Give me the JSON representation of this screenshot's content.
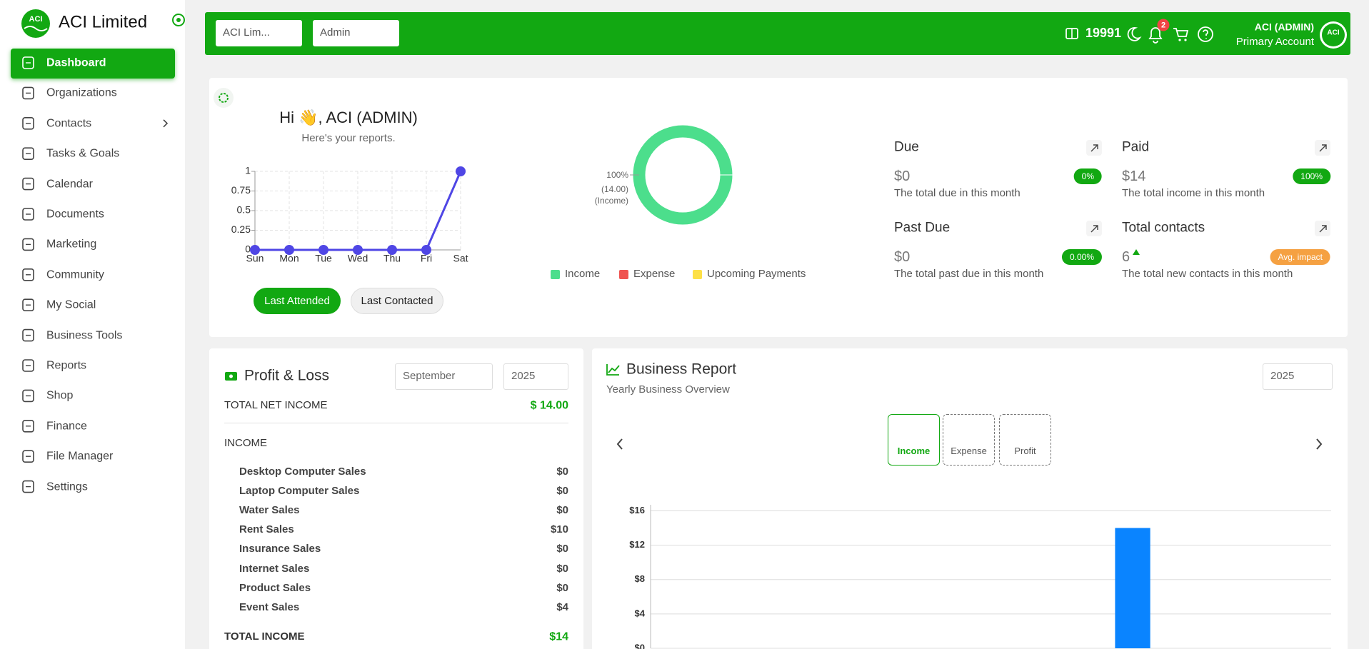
{
  "sidebar": {
    "brand": "ACI Limited",
    "logo": "ACI",
    "menu": [
      "Dashboard",
      "Organizations",
      "Contacts",
      "Tasks & Goals",
      "Calendar",
      "Documents",
      "Marketing",
      "Community",
      "My Social",
      "Business Tools",
      "Reports",
      "Shop",
      "Finance",
      "File Manager",
      "Settings"
    ]
  },
  "topbar": {
    "organization": "ACI Lim...",
    "role": "Admin",
    "credits": 19991,
    "notifications": 2,
    "user": "ACI (ADMIN)",
    "account": "Primary Account",
    "avatar": "ACI"
  },
  "overview": {
    "greeting": "Hi 👋, ACI (ADMIN)",
    "subtitle": "Here's your reports.",
    "buttons": [
      "Last Attended",
      "Last Contacted"
    ],
    "activity_chart": {
      "type": "line",
      "categories": [
        "Sun",
        "Mon",
        "Tue",
        "Wed",
        "Thu",
        "Fri",
        "Sat"
      ],
      "values": [
        0,
        0,
        0,
        0,
        0,
        0,
        1
      ],
      "color": "#4f46e5",
      "ylim": [
        0,
        1
      ],
      "yticks": [
        0,
        0.25,
        0.5,
        0.75,
        1
      ],
      "grid": true
    },
    "income_chart": {
      "type": "donut",
      "categories": [
        "Income",
        "Expense",
        "Upcoming Payments"
      ],
      "values": [
        14,
        0,
        0
      ],
      "colors": [
        "#4cde8c",
        "#ef5350",
        "#fde047"
      ],
      "slice_label": {
        "percent": "100%",
        "amount": "(14.00)",
        "name": "(Income)"
      }
    },
    "stats": [
      {
        "title": "Due",
        "value": "$0",
        "badge": "0%",
        "description": "The total due in this month"
      },
      {
        "title": "Paid",
        "value": "$14",
        "badge": "100%",
        "description": "The total income in this month"
      },
      {
        "title": "Past Due",
        "value": "$0",
        "badge": "0.00%",
        "description": "The total past due in this month"
      },
      {
        "title": "Total contacts",
        "value": "6",
        "badge": "Avg. impact",
        "description": "The total new contacts in this month"
      }
    ]
  },
  "profit_loss": {
    "title": "Profit & Loss",
    "month": "September",
    "year": "2025",
    "net_income_label": "TOTAL NET INCOME",
    "net_income": "$ 14.00",
    "income_label": "INCOME",
    "rows": [
      [
        "Desktop Computer Sales",
        "$0"
      ],
      [
        "Laptop Computer Sales",
        "$0"
      ],
      [
        "Water Sales",
        "$0"
      ],
      [
        "Rent Sales",
        "$10"
      ],
      [
        "Insurance Sales",
        "$0"
      ],
      [
        "Internet Sales",
        "$0"
      ],
      [
        "Product Sales",
        "$0"
      ],
      [
        "Event Sales",
        "$4"
      ]
    ],
    "total_income_label": "TOTAL INCOME",
    "total_income": "$14"
  },
  "business_report": {
    "title": "Business Report",
    "subtitle": "Yearly Business Overview",
    "year": "2025",
    "tabs": [
      "Income",
      "Expense",
      "Profit"
    ],
    "chart": {
      "type": "bar",
      "categories": [
        null,
        null,
        null,
        null,
        null,
        null,
        null,
        null,
        null,
        null,
        null,
        null
      ],
      "values": [
        0,
        0,
        0,
        0,
        0,
        0,
        0,
        0,
        14,
        0,
        0,
        0
      ],
      "color": "#0a84ff",
      "ylim": [
        0,
        16.7
      ],
      "yticks": [
        {
          "value": 0,
          "label": "$0"
        },
        {
          "value": 4,
          "label": "$4"
        },
        {
          "value": 8,
          "label": "$8"
        },
        {
          "value": 12,
          "label": "$12"
        },
        {
          "value": 16,
          "label": "$16"
        }
      ],
      "grid": true
    }
  }
}
